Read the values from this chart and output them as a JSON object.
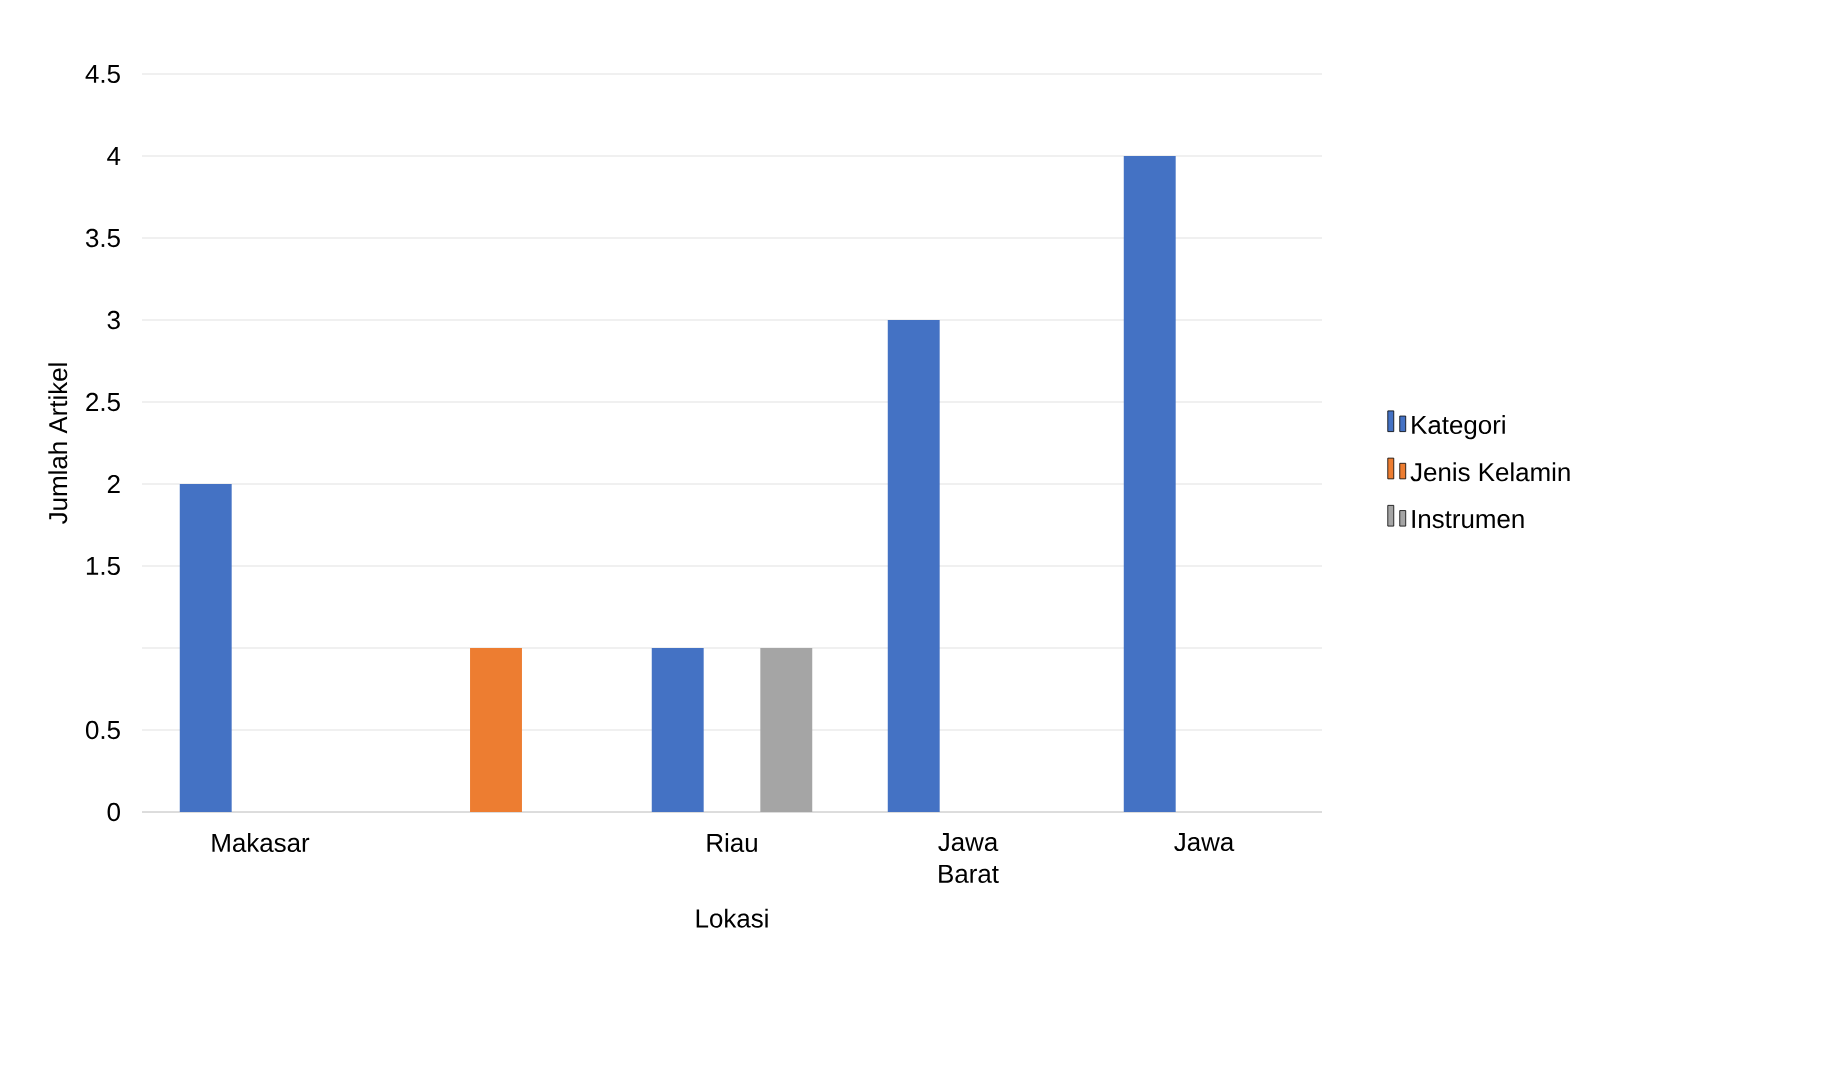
{
  "chart_data": {
    "type": "bar",
    "xlabel": "Lokasi",
    "ylabel": "Jumlah Artikel",
    "categories": [
      "Makasar",
      null,
      "Riau",
      "Jawa Barat",
      "Jawa"
    ],
    "series": [
      {
        "name": "Kategori",
        "color": "#4472c4",
        "values": [
          2,
          null,
          1,
          3,
          4
        ]
      },
      {
        "name": "Jenis Kelamin",
        "color": "#ed7d31",
        "values": [
          null,
          1,
          null,
          null,
          null
        ]
      },
      {
        "name": "Instrumen",
        "color": "#a5a5a5",
        "values": [
          null,
          null,
          1,
          null,
          null
        ]
      }
    ],
    "ylim": [
      0,
      4.5
    ],
    "yticks": [
      0,
      0.5,
      {
        "value": 1,
        "label": null
      },
      1.5,
      2,
      2.5,
      3,
      3.5,
      4,
      4.5
    ],
    "grid": "y",
    "legend": "right"
  }
}
